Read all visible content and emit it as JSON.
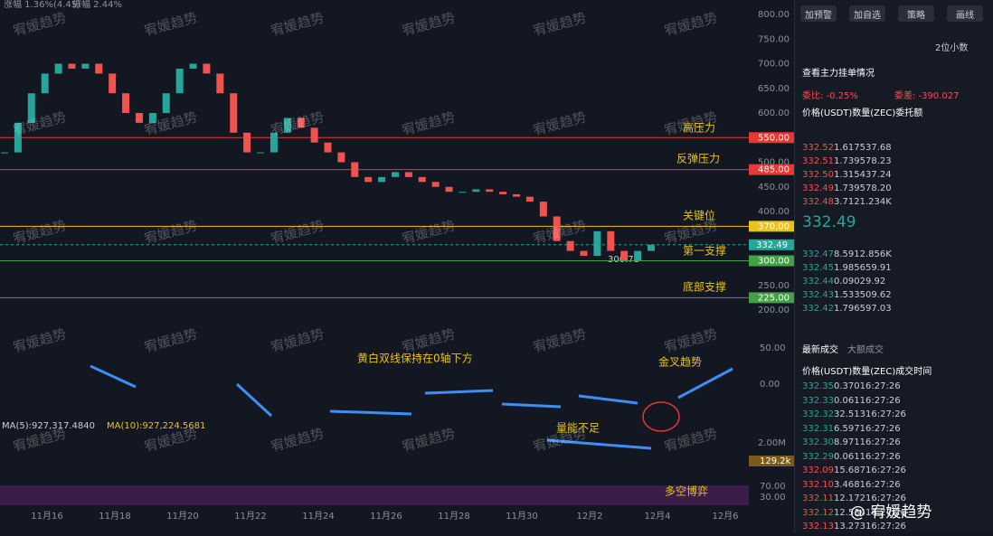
{
  "header": {
    "change": "涨幅 1.36%(4.45)",
    "amplitude": "振幅 2.44%"
  },
  "watermark": "宥媛趋势",
  "price_axis": {
    "ticks": [
      "800.00",
      "750.00",
      "700.00",
      "650.00",
      "600.00",
      "500.00",
      "450.00",
      "400.00",
      "250.00",
      "200.00"
    ]
  },
  "levels": [
    {
      "value": "550.00",
      "label": "高压力",
      "color": "#e53935"
    },
    {
      "value": "485.00",
      "label": "反弹压力",
      "color": "#e53935"
    },
    {
      "value": "370.00",
      "label": "关键位",
      "color": "#e8c31c"
    },
    {
      "value": "300.00",
      "label": "第一支撑",
      "color": "#43a047"
    },
    {
      "value": "225.00",
      "label": "底部支撑",
      "color": "#43a047"
    }
  ],
  "last_price": "332.49",
  "low_label": "300.78",
  "closes": [
    520,
    580,
    640,
    680,
    700,
    690,
    700,
    680,
    640,
    600,
    580,
    600,
    640,
    690,
    700,
    680,
    640,
    560,
    520,
    520,
    560,
    590,
    570,
    540,
    520,
    500,
    470,
    460,
    470,
    480,
    470,
    460,
    450,
    440,
    440,
    445,
    440,
    435,
    430,
    420,
    390,
    340,
    320,
    310,
    360,
    320,
    301,
    320,
    332.49
  ],
  "dates": [
    "11月16",
    "11月18",
    "11月20",
    "11月22",
    "11月24",
    "11月26",
    "11月28",
    "11月30",
    "12月2",
    "12月4",
    "12月6"
  ],
  "macd": {
    "axis": [
      "50.00",
      "0.00"
    ],
    "note": "黄白双线保持在0轴下方",
    "cross": "金叉趋势"
  },
  "volume": {
    "ma5": "MA(5):927,317.4840",
    "ma10": "MA(10):927,224.5681",
    "axis": "2.00M",
    "current": "129.2k",
    "note": "量能不足"
  },
  "rsi": {
    "axis": [
      "70.00",
      "30.00"
    ],
    "note": "多空博弈"
  },
  "footer_watermark": "@ 宥媛趋势",
  "panel": {
    "buttons": [
      "加预警",
      "加自选",
      "策略",
      "画线"
    ],
    "decimals": "2位小数",
    "main_orders": "查看主力挂单情况",
    "ratio": "委比: -0.25%",
    "diff": "委差: -390.027",
    "book_headers": [
      "价格(USDT)",
      "数量(ZEC)",
      "委托额"
    ],
    "asks": [
      [
        "332.52",
        "1.617",
        "537.68"
      ],
      [
        "332.51",
        "1.739",
        "578.23"
      ],
      [
        "332.50",
        "1.315",
        "437.24"
      ],
      [
        "332.49",
        "1.739",
        "578.20"
      ],
      [
        "332.48",
        "3.712",
        "1.234K"
      ]
    ],
    "mid": "332.49",
    "bids": [
      [
        "332.47",
        "8.591",
        "2.856K"
      ],
      [
        "332.45",
        "1.985",
        "659.91"
      ],
      [
        "332.44",
        "0.090",
        "29.92"
      ],
      [
        "332.43",
        "1.533",
        "509.62"
      ],
      [
        "332.42",
        "1.796",
        "597.03"
      ]
    ],
    "tabs": [
      "最新成交",
      "大额成交"
    ],
    "trade_headers": [
      "价格(USDT)",
      "数量(ZEC)",
      "成交时间"
    ],
    "trades": [
      [
        "332.35",
        "0.370",
        "16:27:26"
      ],
      [
        "332.33",
        "0.061",
        "16:27:26"
      ],
      [
        "332.32",
        "32.513",
        "16:27:26"
      ],
      [
        "332.31",
        "6.597",
        "16:27:26"
      ],
      [
        "332.30",
        "8.971",
        "16:27:26"
      ],
      [
        "332.29",
        "0.061",
        "16:27:26"
      ],
      [
        "332.09",
        "15.687",
        "16:27:26"
      ],
      [
        "332.10",
        "3.468",
        "16:27:26"
      ],
      [
        "332.11",
        "12.172",
        "16:27:26"
      ],
      [
        "332.12",
        "12.534",
        "16:27:26"
      ],
      [
        "332.13",
        "13.273",
        "16:27:26"
      ]
    ]
  }
}
